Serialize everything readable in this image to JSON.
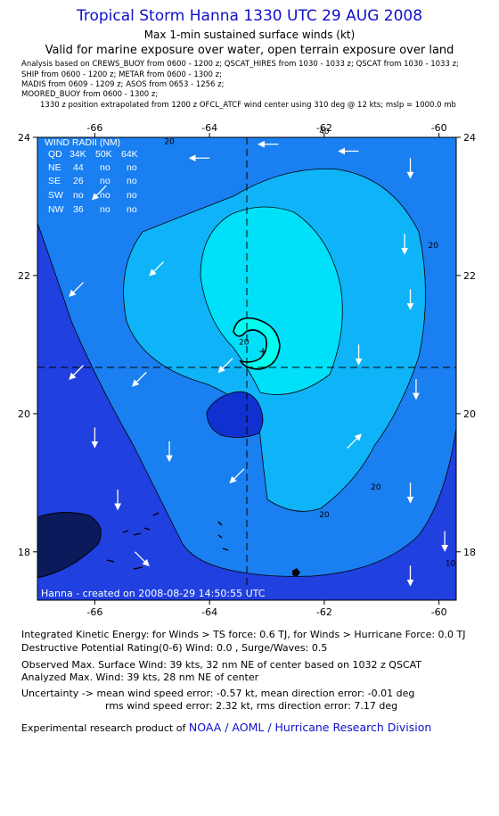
{
  "header": {
    "title": "Tropical Storm Hanna 1330 UTC 29 AUG 2008",
    "subtitle": "Max 1-min sustained surface winds (kt)",
    "validity": "Valid for marine exposure over water, open terrain exposure over land",
    "sources": [
      "Analysis based on  CREWS_BUOY from 0600 - 1200 z;  QSCAT_HIRES from 1030 - 1033 z;  QSCAT from 1030 - 1033 z;",
      "SHIP from 0600 - 1200 z;  METAR from 0600 - 1300 z;",
      "MADIS from 0609 - 1209 z;  ASOS from 0653 - 1256 z;",
      "MOORED_BUOY from 0600 - 1300 z;",
      "1330 z position extrapolated from 1200 z OFCL_ATCF wind center using 310 deg @ 12 kts; mslp = 1000.0 mb"
    ]
  },
  "chart_data": {
    "type": "contour",
    "x_ticks": [
      -66,
      -64,
      -62,
      -60
    ],
    "y_ticks": [
      18,
      20,
      22,
      24
    ],
    "xlim": [
      -67.0,
      -59.7
    ],
    "ylim": [
      17.3,
      24.0
    ],
    "center": {
      "lon": -62.6,
      "lat": 21.2
    },
    "max_wind_location": {
      "lon": -62.3,
      "lat": 21.45
    },
    "contour_labels": [
      {
        "text": "40",
        "lon": -62.0,
        "lat": 24.05
      },
      {
        "text": "20",
        "lon": -64.7,
        "lat": 23.9
      },
      {
        "text": "20",
        "lon": -60.1,
        "lat": 22.4
      },
      {
        "text": "20",
        "lon": -63.4,
        "lat": 21.0
      },
      {
        "text": "20",
        "lon": -62.0,
        "lat": 18.5
      },
      {
        "text": "20",
        "lon": -61.1,
        "lat": 18.9
      },
      {
        "text": "10",
        "lon": -59.8,
        "lat": 17.8
      }
    ],
    "wind_radii": {
      "title": "WIND RADII (NM)",
      "columns": [
        "QD",
        "34K",
        "50K",
        "64K"
      ],
      "rows": [
        [
          "NE",
          "44",
          "no",
          "no"
        ],
        [
          "SE",
          "26",
          "no",
          "no"
        ],
        [
          "SW",
          "no",
          "no",
          "no"
        ],
        [
          "NW",
          "36",
          "no",
          "no"
        ]
      ]
    },
    "footer_label": "Hanna  -  created on  2008-08-29  14:50:55 UTC",
    "colors": {
      "outer": "#2040e0",
      "ring1": "#1a7ff0",
      "ring2": "#0fb4f8",
      "ring3": "#00e0f8",
      "core": "#00ffee",
      "deep": "#1030d0",
      "land": "#000000"
    },
    "wind_vectors": [
      {
        "lon": -65.8,
        "lat": 23.3,
        "dir": "SW"
      },
      {
        "lon": -64.0,
        "lat": 23.7,
        "dir": "W"
      },
      {
        "lon": -62.8,
        "lat": 23.9,
        "dir": "W"
      },
      {
        "lon": -61.4,
        "lat": 23.8,
        "dir": "W"
      },
      {
        "lon": -60.5,
        "lat": 23.7,
        "dir": "S"
      },
      {
        "lon": -66.2,
        "lat": 21.9,
        "dir": "SW"
      },
      {
        "lon": -64.8,
        "lat": 22.2,
        "dir": "SW"
      },
      {
        "lon": -60.6,
        "lat": 22.6,
        "dir": "S"
      },
      {
        "lon": -66.2,
        "lat": 20.7,
        "dir": "SW"
      },
      {
        "lon": -65.1,
        "lat": 20.6,
        "dir": "SW"
      },
      {
        "lon": -63.6,
        "lat": 20.8,
        "dir": "SW"
      },
      {
        "lon": -60.5,
        "lat": 21.8,
        "dir": "S"
      },
      {
        "lon": -61.4,
        "lat": 21.0,
        "dir": "S"
      },
      {
        "lon": -66.0,
        "lat": 19.8,
        "dir": "S"
      },
      {
        "lon": -64.7,
        "lat": 19.6,
        "dir": "S"
      },
      {
        "lon": -61.6,
        "lat": 19.5,
        "dir": "NE"
      },
      {
        "lon": -60.4,
        "lat": 20.5,
        "dir": "S"
      },
      {
        "lon": -65.6,
        "lat": 18.9,
        "dir": "S"
      },
      {
        "lon": -63.4,
        "lat": 19.2,
        "dir": "SW"
      },
      {
        "lon": -60.5,
        "lat": 19.0,
        "dir": "S"
      },
      {
        "lon": -59.9,
        "lat": 18.3,
        "dir": "S"
      },
      {
        "lon": -65.3,
        "lat": 18.0,
        "dir": "SE"
      },
      {
        "lon": -60.5,
        "lat": 17.8,
        "dir": "S"
      }
    ]
  },
  "footer": {
    "ike": "Integrated Kinetic Energy:  for Winds > TS force: 0.6 TJ,  for Winds > Hurricane Force: 0.0 TJ",
    "dpr": "Destructive Potential Rating(0-6)   Wind: 0.0 , Surge/Waves: 0.5",
    "obs_max": "Observed Max. Surface Wind: 39 kts, 32 nm NE of center based on 1032 z QSCAT",
    "ana_max": "Analyzed Max. Wind: 39 kts, 28 nm NE of center",
    "uncert1": "Uncertainty -> mean wind speed error:  -0.57 kt,   mean direction error:  -0.01 deg",
    "uncert2": "rms wind speed error: 2.32 kt,   rms direction error: 7.17 deg",
    "credit_prefix": "Experimental research product of",
    "credit_link": "NOAA / AOML / Hurricane Research Division"
  }
}
